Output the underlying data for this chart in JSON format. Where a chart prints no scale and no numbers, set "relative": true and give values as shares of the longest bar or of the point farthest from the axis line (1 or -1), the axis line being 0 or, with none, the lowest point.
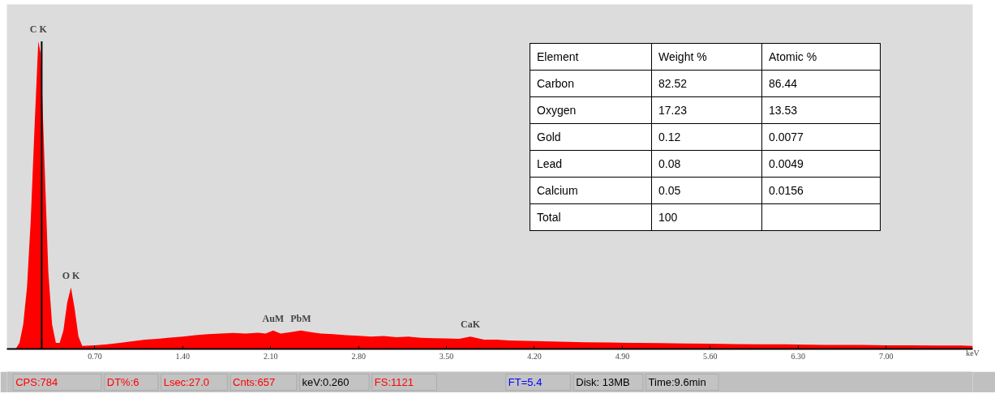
{
  "chart_data": [
    {
      "type": "area",
      "relative": true,
      "xlabel": "keV",
      "xlim": [
        0,
        7.69
      ],
      "xticks": [
        {
          "value": 0.7,
          "label": "0.70"
        },
        {
          "value": 1.4,
          "label": "1.40"
        },
        {
          "value": 2.1,
          "label": "2.10"
        },
        {
          "value": 2.8,
          "label": "2.80"
        },
        {
          "value": 3.5,
          "label": "3.50"
        },
        {
          "value": 4.2,
          "label": "4.20"
        },
        {
          "value": 4.9,
          "label": "4.90"
        },
        {
          "value": 5.6,
          "label": "5.60"
        },
        {
          "value": 6.3,
          "label": "6.30"
        },
        {
          "value": 7.0,
          "label": "7.00"
        }
      ],
      "x": [
        0.07,
        0.1,
        0.13,
        0.16,
        0.19,
        0.22,
        0.25,
        0.27,
        0.3,
        0.33,
        0.36,
        0.39,
        0.42,
        0.45,
        0.48,
        0.51,
        0.54,
        0.57,
        0.6,
        0.7,
        0.8,
        0.9,
        1.0,
        1.1,
        1.2,
        1.3,
        1.4,
        1.5,
        1.6,
        1.7,
        1.8,
        1.9,
        2.0,
        2.06,
        2.12,
        2.18,
        2.26,
        2.34,
        2.42,
        2.5,
        2.6,
        2.7,
        2.8,
        2.9,
        3.0,
        3.1,
        3.2,
        3.3,
        3.4,
        3.5,
        3.6,
        3.69,
        3.8,
        3.9,
        4.0,
        4.2,
        4.4,
        4.6,
        4.8,
        5.0,
        5.2,
        5.4,
        5.6,
        5.8,
        6.0,
        6.2,
        6.4,
        6.6,
        6.8,
        7.0,
        7.2,
        7.4,
        7.6,
        7.69
      ],
      "series": [
        {
          "color": "#ff0000",
          "values": [
            0,
            0.02,
            0.08,
            0.2,
            0.42,
            0.72,
            1.0,
            0.96,
            0.6,
            0.25,
            0.08,
            0.02,
            0.02,
            0.06,
            0.15,
            0.2,
            0.13,
            0.04,
            0.01,
            0.012,
            0.015,
            0.02,
            0.025,
            0.03,
            0.033,
            0.037,
            0.04,
            0.045,
            0.048,
            0.05,
            0.052,
            0.05,
            0.053,
            0.05,
            0.06,
            0.05,
            0.055,
            0.06,
            0.055,
            0.05,
            0.048,
            0.045,
            0.043,
            0.04,
            0.042,
            0.038,
            0.04,
            0.036,
            0.035,
            0.034,
            0.033,
            0.04,
            0.03,
            0.03,
            0.028,
            0.026,
            0.024,
            0.022,
            0.021,
            0.02,
            0.019,
            0.018,
            0.017,
            0.016,
            0.015,
            0.015,
            0.014,
            0.013,
            0.013,
            0.012,
            0.012,
            0.011,
            0.011,
            0.01
          ]
        }
      ],
      "ref_lines": [
        {
          "axis": "x",
          "value": 0.277,
          "color": "#000000"
        }
      ],
      "annotations": [
        {
          "text": "C K",
          "x": 0.25,
          "y": 1.0
        },
        {
          "text": "O K",
          "x": 0.51,
          "y": 0.2
        },
        {
          "text": "AuM",
          "x": 2.12,
          "y": 0.06
        },
        {
          "text": "PbM",
          "x": 2.34,
          "y": 0.06
        },
        {
          "text": "CaK",
          "x": 3.69,
          "y": 0.04
        }
      ]
    },
    {
      "type": "other",
      "categories": [
        "Element",
        "Weight %",
        "Atomic %"
      ],
      "annotations": [
        "Carbon",
        "82.52",
        "86.44",
        "Oxygen",
        "17.23",
        "13.53",
        "Gold",
        "0.12",
        "0.0077",
        "Lead",
        "0.08",
        "0.0049",
        "Calcium",
        "0.05",
        "0.0156",
        "Total",
        "100"
      ]
    },
    {
      "type": "other",
      "annotations": [
        "CPS:784",
        "DT%:6",
        "Lsec:27.0",
        "Cnts:657",
        "keV:0.260",
        "FS:1121",
        "FT=5.4",
        "Disk:  13MB",
        "Time:9.6min"
      ],
      "colors": [
        "#ff0000",
        "#ff0000",
        "#ff0000",
        "#ff0000",
        "#000000",
        "#ff0000",
        "#0000ff",
        "#000000",
        "#000000"
      ]
    }
  ]
}
